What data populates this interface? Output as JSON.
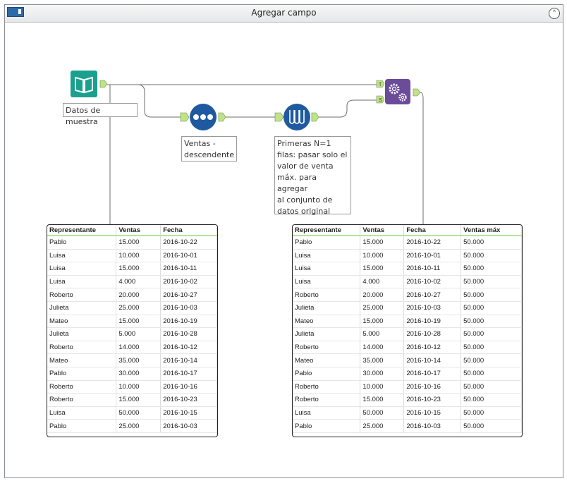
{
  "window": {
    "title": "Agregar campo",
    "collapse_icon": "⌃"
  },
  "tools": {
    "input": {
      "label": "Datos de muestra",
      "icon": "book-icon",
      "color": "#1aa08e"
    },
    "sort": {
      "label": "Ventas -\ndescendente",
      "icon": "dots-icon",
      "color": "#1f5aa0"
    },
    "sample": {
      "label": "Primeras N=1\nfilas: pasar solo el\nvalor de venta\nmáx. para agregar\nal conjunto de\ndatos original",
      "icon": "test-tubes-icon",
      "color": "#1f5aa0"
    },
    "append": {
      "icon": "gears-icon",
      "color": "#6b4c9a",
      "anchor_t": "T",
      "anchor_s": "S"
    }
  },
  "left_table": {
    "headers": [
      "Representante",
      "Ventas",
      "Fecha"
    ],
    "rows": [
      [
        "Pablo",
        "15.000",
        "2016-10-22"
      ],
      [
        "Luisa",
        "10.000",
        "2016-10-01"
      ],
      [
        "Luisa",
        "15.000",
        "2016-10-11"
      ],
      [
        "Luisa",
        "4.000",
        "2016-10-02"
      ],
      [
        "Roberto",
        "20.000",
        "2016-10-27"
      ],
      [
        "Julieta",
        "25.000",
        "2016-10-03"
      ],
      [
        "Mateo",
        "15.000",
        "2016-10-19"
      ],
      [
        "Julieta",
        "5.000",
        "2016-10-28"
      ],
      [
        "Roberto",
        "14.000",
        "2016-10-12"
      ],
      [
        "Mateo",
        "35.000",
        "2016-10-14"
      ],
      [
        "Pablo",
        "30.000",
        "2016-10-17"
      ],
      [
        "Roberto",
        "10.000",
        "2016-10-16"
      ],
      [
        "Roberto",
        "15.000",
        "2016-10-23"
      ],
      [
        "Luisa",
        "50.000",
        "2016-10-15"
      ],
      [
        "Pablo",
        "25.000",
        "2016-10-03"
      ]
    ]
  },
  "right_table": {
    "headers": [
      "Representante",
      "Ventas",
      "Fecha",
      "Ventas máx"
    ],
    "rows": [
      [
        "Pablo",
        "15.000",
        "2016-10-22",
        "50.000"
      ],
      [
        "Luisa",
        "10.000",
        "2016-10-01",
        "50.000"
      ],
      [
        "Luisa",
        "15.000",
        "2016-10-11",
        "50.000"
      ],
      [
        "Luisa",
        "4.000",
        "2016-10-02",
        "50.000"
      ],
      [
        "Roberto",
        "20.000",
        "2016-10-27",
        "50.000"
      ],
      [
        "Julieta",
        "25.000",
        "2016-10-03",
        "50.000"
      ],
      [
        "Mateo",
        "15.000",
        "2016-10-19",
        "50.000"
      ],
      [
        "Julieta",
        "5.000",
        "2016-10-28",
        "50.000"
      ],
      [
        "Roberto",
        "14.000",
        "2016-10-12",
        "50.000"
      ],
      [
        "Mateo",
        "35.000",
        "2016-10-14",
        "50.000"
      ],
      [
        "Pablo",
        "30.000",
        "2016-10-17",
        "50.000"
      ],
      [
        "Roberto",
        "10.000",
        "2016-10-16",
        "50.000"
      ],
      [
        "Roberto",
        "15.000",
        "2016-10-23",
        "50.000"
      ],
      [
        "Luisa",
        "50.000",
        "2016-10-15",
        "50.000"
      ],
      [
        "Pablo",
        "25.000",
        "2016-10-03",
        "50.000"
      ]
    ]
  }
}
